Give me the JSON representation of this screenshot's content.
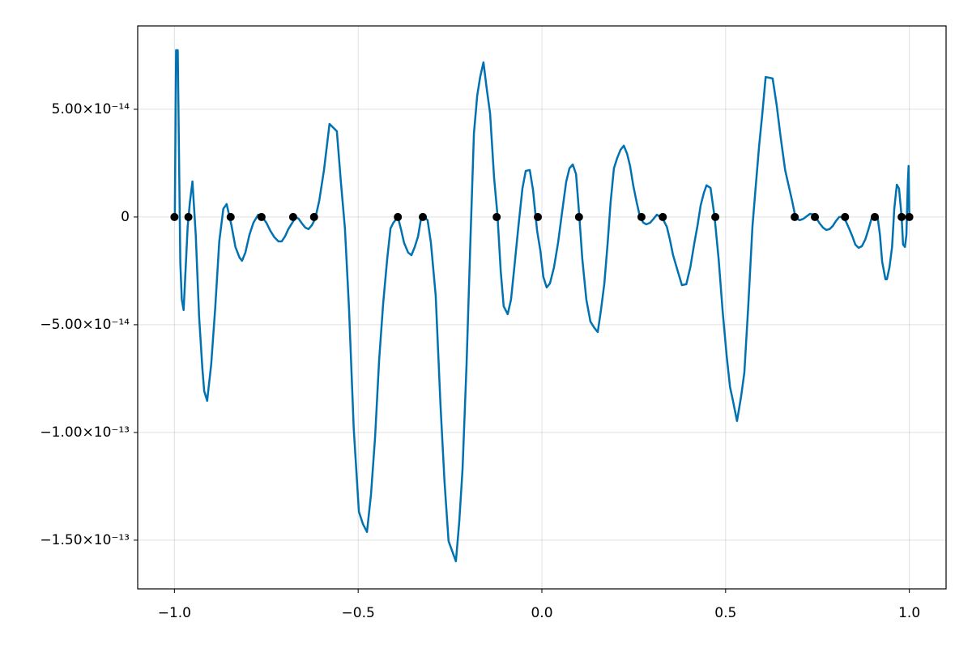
{
  "chart_data": {
    "type": "line",
    "xlim": [
      -1.1,
      1.1
    ],
    "ylim": [
      -1.726e-13,
      8.87e-14
    ],
    "xticks": [
      {
        "value": -1.0,
        "label": "−1.0"
      },
      {
        "value": -0.5,
        "label": "−0.5"
      },
      {
        "value": 0,
        "label": "0.0"
      },
      0.5,
      {
        "value": 1.0,
        "label": "1.0"
      }
    ],
    "yticks": [
      {
        "value": -1.5e-13,
        "label": "−1.50×10⁻¹³"
      },
      {
        "value": -1e-13,
        "label": "−1.00×10⁻¹³"
      },
      {
        "value": -5e-14,
        "label": "−5.00×10⁻¹⁴"
      },
      0,
      {
        "value": 5e-14,
        "label": "5.00×10⁻¹⁴"
      }
    ],
    "grid": true,
    "series": [
      {
        "type": "line",
        "color": "#0072b2",
        "x": [
          -0.999,
          -0.9955,
          -0.991,
          -0.984,
          -0.98,
          -0.975,
          -0.971,
          -0.964,
          -0.958,
          -0.951,
          -0.942,
          -0.933,
          -0.924,
          -0.919,
          -0.911,
          -0.9,
          -0.889,
          -0.878,
          -0.867,
          -0.858,
          -0.853,
          -0.845,
          -0.834,
          -0.823,
          -0.816,
          -0.807,
          -0.796,
          -0.785,
          -0.772,
          -0.761,
          -0.75,
          -0.739,
          -0.728,
          -0.717,
          -0.708,
          -0.699,
          -0.69,
          -0.679,
          -0.67,
          -0.662,
          -0.653,
          -0.644,
          -0.635,
          -0.626,
          -0.617,
          -0.606,
          -0.593,
          -0.578,
          -0.569,
          -0.558,
          -0.547,
          -0.536,
          -0.525,
          -0.512,
          -0.498,
          -0.487,
          -0.476,
          -0.465,
          -0.454,
          -0.443,
          -0.432,
          -0.421,
          -0.412,
          -0.404,
          -0.392,
          -0.384,
          -0.375,
          -0.364,
          -0.355,
          -0.346,
          -0.337,
          -0.329,
          -0.32,
          -0.311,
          -0.302,
          -0.289,
          -0.276,
          -0.265,
          -0.254,
          -0.243,
          -0.234,
          -0.225,
          -0.216,
          -0.205,
          -0.194,
          -0.185,
          -0.176,
          -0.168,
          -0.159,
          -0.15,
          -0.141,
          -0.13,
          -0.121,
          -0.112,
          -0.104,
          -0.093,
          -0.084,
          -0.075,
          -0.064,
          -0.053,
          -0.044,
          -0.033,
          -0.024,
          -0.013,
          -0.004,
          0.004,
          0.013,
          0.022,
          0.033,
          0.044,
          0.055,
          0.066,
          0.075,
          0.084,
          0.093,
          0.101,
          0.11,
          0.121,
          0.132,
          0.143,
          0.152,
          0.161,
          0.17,
          0.179,
          0.187,
          0.196,
          0.205,
          0.214,
          0.223,
          0.232,
          0.24,
          0.249,
          0.258,
          0.267,
          0.276,
          0.284,
          0.295,
          0.304,
          0.313,
          0.322,
          0.331,
          0.34,
          0.348,
          0.357,
          0.368,
          0.381,
          0.393,
          0.404,
          0.415,
          0.423,
          0.432,
          0.441,
          0.448,
          0.459,
          0.47,
          0.481,
          0.492,
          0.503,
          0.512,
          0.52,
          0.531,
          0.542,
          0.551,
          0.562,
          0.573,
          0.582,
          0.591,
          0.6,
          0.609,
          0.617,
          0.628,
          0.639,
          0.65,
          0.662,
          0.673,
          0.681,
          0.69,
          0.701,
          0.712,
          0.721,
          0.73,
          0.739,
          0.748,
          0.756,
          0.765,
          0.774,
          0.783,
          0.792,
          0.8,
          0.809,
          0.818,
          0.827,
          0.836,
          0.845,
          0.853,
          0.862,
          0.871,
          0.88,
          0.889,
          0.897,
          0.904,
          0.913,
          0.92,
          0.926,
          0.935,
          0.939,
          0.946,
          0.953,
          0.959,
          0.966,
          0.972,
          0.979,
          0.983,
          0.988,
          0.992,
          0.996,
          0.998,
          1.0
        ],
        "values": [
          0,
          7.74e-14,
          7.74e-14,
          -2.14e-14,
          -3.83e-14,
          -4.32e-14,
          -2.9e-14,
          -4.5e-15,
          6.8e-15,
          1.65e-14,
          -8.3e-15,
          -4.59e-14,
          -7.03e-14,
          -8.08e-14,
          -8.53e-14,
          -6.84e-14,
          -4.21e-14,
          -1.13e-14,
          3.8e-15,
          6e-15,
          2.3e-15,
          -3.8e-15,
          -1.39e-14,
          -1.88e-14,
          -2.03e-14,
          -1.65e-14,
          -8.3e-15,
          -2.6e-15,
          1.1e-15,
          0,
          -2.6e-15,
          -6.4e-15,
          -9.4e-15,
          -1.13e-14,
          -1.13e-14,
          -9e-15,
          -5.6e-15,
          -2.6e-15,
          0,
          -8e-16,
          -3e-15,
          -4.9e-15,
          -5.6e-15,
          -3.8e-15,
          -8e-16,
          7.5e-15,
          2.18e-14,
          4.32e-14,
          4.17e-14,
          3.98e-14,
          1.62e-14,
          -5.3e-15,
          -4.21e-14,
          -9.85e-14,
          -1.368e-13,
          -1.425e-13,
          -1.462e-13,
          -1.286e-13,
          -1.023e-13,
          -6.65e-14,
          -4.02e-14,
          -1.95e-14,
          -5.3e-15,
          -2.6e-15,
          0,
          -5.3e-15,
          -1.2e-14,
          -1.65e-14,
          -1.77e-14,
          -1.39e-14,
          -9e-15,
          -8e-16,
          0,
          -1.5e-15,
          -1.2e-14,
          -3.65e-14,
          -8.72e-14,
          -1.229e-13,
          -1.504e-13,
          -1.556e-13,
          -1.598e-13,
          -1.417e-13,
          -1.173e-13,
          -6.84e-14,
          -8.3e-15,
          3.87e-14,
          5.64e-14,
          6.5e-14,
          7.18e-14,
          5.94e-14,
          4.81e-14,
          1.8e-14,
          1.1e-15,
          -2.52e-14,
          -4.14e-14,
          -4.51e-14,
          -3.83e-14,
          -2.33e-14,
          -4.5e-15,
          1.32e-14,
          2.14e-14,
          2.18e-14,
          1.24e-14,
          -6.4e-15,
          -1.58e-14,
          -2.78e-14,
          -3.27e-14,
          -3.08e-14,
          -2.33e-14,
          -1.2e-14,
          2.3e-15,
          1.62e-14,
          2.26e-14,
          2.44e-14,
          1.99e-14,
          2.3e-15,
          -1.95e-14,
          -3.83e-14,
          -4.85e-14,
          -5.15e-14,
          -5.34e-14,
          -4.29e-14,
          -3.08e-14,
          -1.2e-14,
          6.8e-15,
          2.26e-14,
          2.74e-14,
          3.12e-14,
          3.31e-14,
          2.93e-14,
          2.37e-14,
          1.43e-14,
          6.8e-15,
          0,
          -2.6e-15,
          -3.4e-15,
          -2.6e-15,
          -8e-16,
          1.1e-15,
          0,
          -1.5e-15,
          -4.5e-15,
          -1.02e-14,
          -1.77e-14,
          -2.41e-14,
          -3.16e-14,
          -3.12e-14,
          -2.33e-14,
          -1.2e-14,
          -4.5e-15,
          5.3e-15,
          1.13e-14,
          1.47e-14,
          1.35e-14,
          0,
          -1.95e-14,
          -4.39e-14,
          -6.47e-14,
          -7.89e-14,
          -8.53e-14,
          -9.47e-14,
          -8.35e-14,
          -7.22e-14,
          -4.02e-14,
          -4.5e-15,
          1.43e-14,
          3.27e-14,
          4.81e-14,
          6.5e-14,
          6.47e-14,
          6.43e-14,
          5.19e-14,
          3.68e-14,
          2.18e-14,
          1.35e-14,
          7.5e-15,
          0,
          -1.5e-15,
          -8e-16,
          4e-16,
          1.5e-15,
          1.1e-15,
          -8e-16,
          -3e-15,
          -4.9e-15,
          -6e-15,
          -5.6e-15,
          -4.1e-15,
          -1.9e-15,
          0,
          0,
          -1.9e-15,
          -5.3e-15,
          -9e-15,
          -1.28e-14,
          -1.43e-14,
          -1.35e-14,
          -1.05e-14,
          -5.6e-15,
          -8e-16,
          8e-16,
          8e-16,
          -8.3e-15,
          -2.07e-14,
          -2.89e-14,
          -2.89e-14,
          -2.33e-14,
          -1.39e-14,
          3.8e-15,
          1.5e-14,
          1.32e-14,
          0,
          -1.28e-14,
          -1.39e-14,
          -8.3e-15,
          1.62e-14,
          2.37e-14,
          0
        ]
      },
      {
        "type": "scatter",
        "color": "#000000",
        "x": [
          -1.0,
          -0.962,
          -0.847,
          -0.763,
          -0.677,
          -0.62,
          -0.392,
          -0.324,
          -0.123,
          -0.011,
          0.101,
          0.271,
          0.329,
          0.472,
          0.688,
          0.743,
          0.825,
          0.906,
          0.979,
          1.0
        ],
        "values": [
          0,
          0,
          0,
          0,
          0,
          0,
          0,
          0,
          0,
          0,
          0,
          0,
          0,
          0,
          0,
          0,
          0,
          0,
          0,
          0
        ]
      }
    ]
  }
}
